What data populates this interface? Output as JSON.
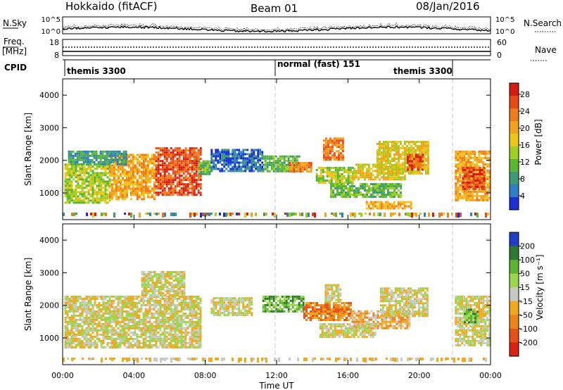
{
  "header": {
    "station": "Hokkaido (fitACF)",
    "beam": "Beam 01",
    "date": "08/Jan/2016"
  },
  "nsky_panel": {
    "label": "N.Sky",
    "left_ticks": [
      "10^5",
      "10^0"
    ],
    "right_ticks": [
      "10^5",
      "10^0"
    ],
    "right_label": "N.Search"
  },
  "freq_panel": {
    "label_line1": "Freq.",
    "label_line2": "[MHz]",
    "left_ticks": [
      "18",
      "8"
    ],
    "right_ticks": [
      "60",
      "0"
    ],
    "right_label": "Nave"
  },
  "cpid_panel": {
    "label": "CPID",
    "modes": [
      "themis 3300",
      "normal (fast) 151",
      "themis 3300"
    ]
  },
  "chart_data": [
    {
      "type": "heatmap",
      "name": "power",
      "x_range_hours": [
        0,
        24
      ],
      "ylabel": "Slant Range [km]",
      "yticks": [
        "1000",
        "2000",
        "3000",
        "4000"
      ],
      "ylim_km": [
        180,
        4500
      ],
      "colorbar": {
        "label": "Power [dB]",
        "ticks": [
          "4",
          "8",
          "12",
          "16",
          "20",
          "24",
          "28"
        ],
        "colors": [
          "#1a2fd8",
          "#2e7fc9",
          "#3d9b73",
          "#58b833",
          "#9fcf21",
          "#f2c418",
          "#f4a21c",
          "#ee7c1a",
          "#e84a14",
          "#d81a10"
        ]
      },
      "regions": [
        {
          "t0": 0.1,
          "t1": 2.6,
          "r0": 700,
          "r1": 1900,
          "level": 4
        },
        {
          "t0": 2.6,
          "t1": 5.2,
          "r0": 800,
          "r1": 2200,
          "level": 6
        },
        {
          "t0": 5.2,
          "t1": 7.7,
          "r0": 950,
          "r1": 2400,
          "level": 8
        },
        {
          "t0": 0.3,
          "t1": 3.5,
          "r0": 1900,
          "r1": 2300,
          "level": 2
        },
        {
          "t0": 7.6,
          "t1": 8.3,
          "r0": 1600,
          "r1": 2000,
          "level": 3
        },
        {
          "t0": 8.3,
          "t1": 11.2,
          "r0": 1700,
          "r1": 2350,
          "level": 1
        },
        {
          "t0": 11.2,
          "t1": 13.3,
          "r0": 1650,
          "r1": 2150,
          "level": 3
        },
        {
          "t0": 12.7,
          "t1": 14.0,
          "r0": 1650,
          "r1": 1950,
          "level": 7
        },
        {
          "t0": 14.2,
          "t1": 16.3,
          "r0": 1300,
          "r1": 1800,
          "level": 4
        },
        {
          "t0": 16.3,
          "t1": 19.2,
          "r0": 1400,
          "r1": 1900,
          "level": 5
        },
        {
          "t0": 15.0,
          "t1": 19.0,
          "r0": 900,
          "r1": 1300,
          "level": 3
        },
        {
          "t0": 14.6,
          "t1": 15.7,
          "r0": 2050,
          "r1": 2700,
          "level": 7
        },
        {
          "t0": 17.6,
          "t1": 20.5,
          "r0": 1600,
          "r1": 2600,
          "level": 5
        },
        {
          "t0": 19.3,
          "t1": 20.2,
          "r0": 1700,
          "r1": 2200,
          "level": 8
        },
        {
          "t0": 17.0,
          "t1": 19.5,
          "r0": 550,
          "r1": 750,
          "level": 6
        },
        {
          "t0": 22.0,
          "t1": 24.0,
          "r0": 800,
          "r1": 2300,
          "level": 6
        },
        {
          "t0": 22.4,
          "t1": 23.6,
          "r0": 1100,
          "r1": 1800,
          "level": 8
        }
      ]
    },
    {
      "type": "heatmap",
      "name": "velocity",
      "x_range_hours": [
        0,
        24
      ],
      "xlabel": "Time UT",
      "xticks": [
        "00:00",
        "04:00",
        "08:00",
        "12:00",
        "16:00",
        "20:00",
        "00:00"
      ],
      "ylabel": "Slant Range [km]",
      "yticks": [
        "1000",
        "2000",
        "3000",
        "4000"
      ],
      "ylim_km": [
        180,
        4500
      ],
      "colorbar": {
        "label": "Velocity [m s⁻¹]",
        "ticks": [
          "200",
          "100",
          "50",
          "15",
          "-15",
          "-50",
          "-100",
          "-200"
        ],
        "colors": [
          "#1f3fc8",
          "#2d7a2d",
          "#5ab532",
          "#9cd64a",
          "#c8c8c4",
          "#f2a81a",
          "#ee8218",
          "#e85016",
          "#dc2010"
        ]
      },
      "regions": [
        {
          "t0": 0.1,
          "t1": 7.7,
          "r0": 700,
          "r1": 2300,
          "level": 4
        },
        {
          "t0": 4.4,
          "t1": 6.8,
          "r0": 2300,
          "r1": 3050,
          "level": 4
        },
        {
          "t0": 8.3,
          "t1": 10.6,
          "r0": 1700,
          "r1": 2250,
          "level": 4
        },
        {
          "t0": 11.2,
          "t1": 13.5,
          "r0": 1800,
          "r1": 2300,
          "level": 2
        },
        {
          "t0": 13.5,
          "t1": 16.2,
          "r0": 1550,
          "r1": 2100,
          "level": 6
        },
        {
          "t0": 16.2,
          "t1": 19.4,
          "r0": 1300,
          "r1": 1850,
          "level": 5
        },
        {
          "t0": 14.4,
          "t1": 17.5,
          "r0": 1000,
          "r1": 1450,
          "level": 4
        },
        {
          "t0": 14.7,
          "t1": 15.6,
          "r0": 2100,
          "r1": 2650,
          "level": 4
        },
        {
          "t0": 17.8,
          "t1": 20.5,
          "r0": 1650,
          "r1": 2550,
          "level": 4
        },
        {
          "t0": 22.0,
          "t1": 24.0,
          "r0": 800,
          "r1": 2300,
          "level": 4
        },
        {
          "t0": 22.5,
          "t1": 23.3,
          "r0": 1500,
          "r1": 1900,
          "level": 2
        }
      ]
    }
  ]
}
